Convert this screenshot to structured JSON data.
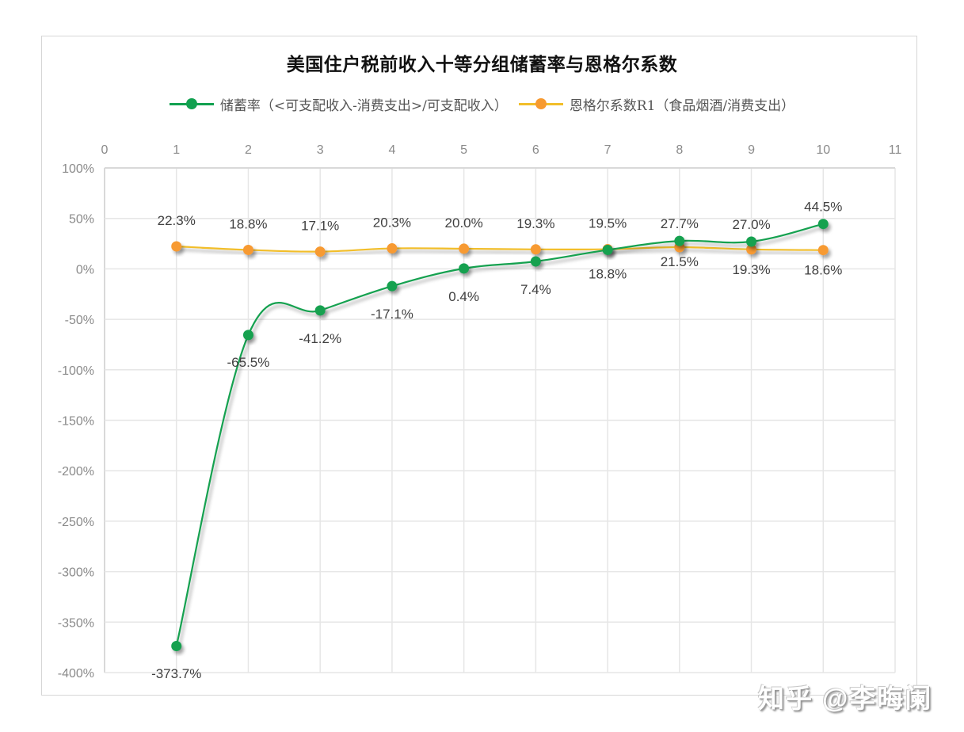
{
  "chart": {
    "title": "美国住户税前收入十等分组储蓄率与恩格尔系数",
    "legend": [
      {
        "label": "储蓄率（<可支配收入-消费支出>/可支配收入）",
        "color": "#12A150"
      },
      {
        "label": "恩格尔系数R1（食品烟酒/消费支出）",
        "color": "#F79A30"
      }
    ]
  },
  "watermark": "知乎 @李晦阑",
  "chart_data": {
    "type": "line",
    "title": "美国住户税前收入十等分组储蓄率与恩格尔系数",
    "xlabel": "",
    "ylabel": "",
    "x": [
      1,
      2,
      3,
      4,
      5,
      6,
      7,
      8,
      9,
      10
    ],
    "x_ticks": [
      "0",
      "1",
      "2",
      "3",
      "4",
      "5",
      "6",
      "7",
      "8",
      "9",
      "10",
      "11"
    ],
    "xlim": [
      0,
      11
    ],
    "x_axis_position": "top",
    "y_ticks": [
      "100%",
      "50%",
      "0%",
      "-50%",
      "-100%",
      "-150%",
      "-200%",
      "-250%",
      "-300%",
      "-350%",
      "-400%"
    ],
    "ylim": [
      -400,
      100
    ],
    "grid": true,
    "legend_position": "top",
    "series": [
      {
        "name": "储蓄率（<可支配收入-消费支出>/可支配收入）",
        "color": "#12A150",
        "smooth": true,
        "values": [
          -373.7,
          -65.5,
          -41.2,
          -17.1,
          0.4,
          7.4,
          18.8,
          27.7,
          27.0,
          44.5
        ],
        "labels": [
          "-373.7%",
          "-65.5%",
          "-41.2%",
          "-17.1%",
          "0.4%",
          "7.4%",
          "18.8%",
          "27.7%",
          "27.0%",
          "44.5%"
        ],
        "label_pos": [
          "below",
          "below",
          "below",
          "below",
          "below",
          "below",
          "below",
          "above",
          "above",
          "above"
        ]
      },
      {
        "name": "恩格尔系数R1（食品烟酒/消费支出）",
        "color": "#F79A30",
        "line_color": "#F2BE2A",
        "smooth": true,
        "values": [
          22.3,
          18.8,
          17.1,
          20.3,
          20.0,
          19.3,
          19.5,
          21.5,
          19.3,
          18.6
        ],
        "labels": [
          "22.3%",
          "18.8%",
          "17.1%",
          "20.3%",
          "20.0%",
          "19.3%",
          "19.5%",
          "21.5%",
          "19.3%",
          "18.6%"
        ],
        "label_pos": [
          "above",
          "above",
          "above",
          "above",
          "above",
          "above",
          "above",
          "below",
          "below",
          "below"
        ]
      }
    ]
  }
}
